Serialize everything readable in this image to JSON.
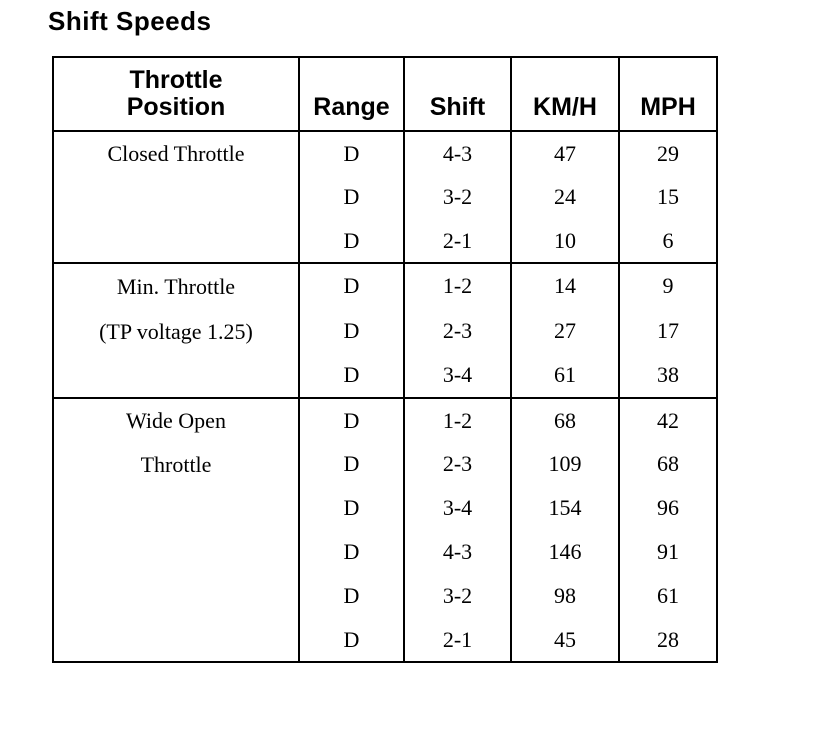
{
  "page": {
    "title": "Shift Speeds",
    "background_color": "#ffffff",
    "text_color": "#000000"
  },
  "table": {
    "columns": [
      {
        "key": "throttle",
        "label": "Throttle Position",
        "label_lines": [
          "Throttle",
          "Position"
        ]
      },
      {
        "key": "range",
        "label": "Range"
      },
      {
        "key": "shift",
        "label": "Shift"
      },
      {
        "key": "kmh",
        "label": "KM/H"
      },
      {
        "key": "mph",
        "label": "MPH"
      }
    ],
    "sections": [
      {
        "throttle_lines": [
          "Closed Throttle"
        ],
        "rows": [
          {
            "range": "D",
            "shift": "4-3",
            "kmh": "47",
            "mph": "29"
          },
          {
            "range": "D",
            "shift": "3-2",
            "kmh": "24",
            "mph": "15"
          },
          {
            "range": "D",
            "shift": "2-1",
            "kmh": "10",
            "mph": "6"
          }
        ]
      },
      {
        "throttle_lines": [
          "Min. Throttle",
          "(TP voltage 1.25)"
        ],
        "rows": [
          {
            "range": "D",
            "shift": "1-2",
            "kmh": "14",
            "mph": "9"
          },
          {
            "range": "D",
            "shift": "2-3",
            "kmh": "27",
            "mph": "17"
          },
          {
            "range": "D",
            "shift": "3-4",
            "kmh": "61",
            "mph": "38"
          }
        ]
      },
      {
        "throttle_lines": [
          "Wide Open",
          "Throttle"
        ],
        "rows": [
          {
            "range": "D",
            "shift": "1-2",
            "kmh": "68",
            "mph": "42"
          },
          {
            "range": "D",
            "shift": "2-3",
            "kmh": "109",
            "mph": "68"
          },
          {
            "range": "D",
            "shift": "3-4",
            "kmh": "154",
            "mph": "96"
          },
          {
            "range": "D",
            "shift": "4-3",
            "kmh": "146",
            "mph": "91"
          },
          {
            "range": "D",
            "shift": "3-2",
            "kmh": "98",
            "mph": "61"
          },
          {
            "range": "D",
            "shift": "2-1",
            "kmh": "45",
            "mph": "28"
          }
        ]
      }
    ]
  }
}
